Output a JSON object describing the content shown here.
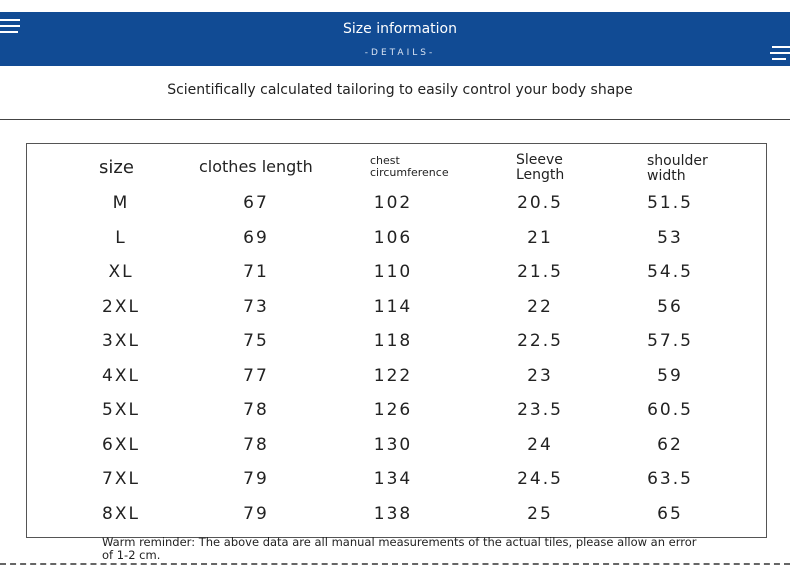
{
  "header": {
    "title": "Size information",
    "subtitle": "-DETAILS-"
  },
  "tagline": "Scientifically calculated tailoring to easily control your body shape",
  "table": {
    "columns": [
      "size",
      "clothes length",
      "chest circumference",
      "Sleeve Length",
      "shoulder width"
    ],
    "rows": [
      [
        "M",
        67,
        102,
        20.5,
        51.5
      ],
      [
        "L",
        69,
        106,
        21,
        53
      ],
      [
        "XL",
        71,
        110,
        21.5,
        54.5
      ],
      [
        "2XL",
        73,
        114,
        22,
        56
      ],
      [
        "3XL",
        75,
        118,
        22.5,
        57.5
      ],
      [
        "4XL",
        77,
        122,
        23,
        59
      ],
      [
        "5XL",
        78,
        126,
        23.5,
        60.5
      ],
      [
        "6XL",
        78,
        130,
        24,
        62
      ],
      [
        "7XL",
        79,
        134,
        24.5,
        63.5
      ],
      [
        "8XL",
        79,
        138,
        25,
        65
      ]
    ]
  },
  "footer": "Warm reminder: The above data are all manual measurements of the actual tiles, please allow an error of 1-2 cm."
}
